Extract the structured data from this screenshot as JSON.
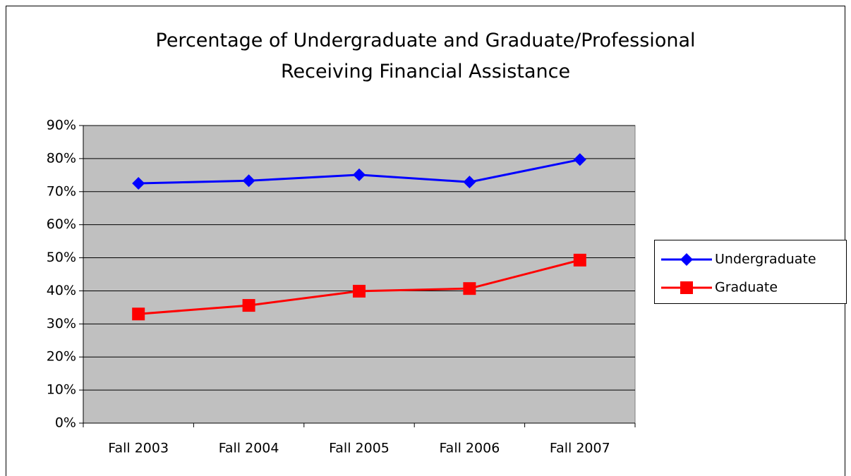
{
  "chart_data": {
    "type": "line",
    "title": "Percentage of Undergraduate and Graduate/Professional Receiving Financial Assistance",
    "categories": [
      "Fall 2003",
      "Fall 2004",
      "Fall 2005",
      "Fall 2006",
      "Fall 2007"
    ],
    "series": [
      {
        "name": "Undergraduate",
        "color": "#0000ff",
        "marker": "diamond",
        "values": [
          72.5,
          73.3,
          75.1,
          72.9,
          79.7
        ]
      },
      {
        "name": "Graduate",
        "color": "#ff0000",
        "marker": "square",
        "values": [
          33.0,
          35.6,
          39.9,
          40.7,
          49.3
        ]
      }
    ],
    "ylim": [
      0,
      90
    ],
    "yticks": [
      {
        "value": 0,
        "label": "0%"
      },
      {
        "value": 10,
        "label": "10%"
      },
      {
        "value": 20,
        "label": "20%"
      },
      {
        "value": 30,
        "label": "30%"
      },
      {
        "value": 40,
        "label": "40%"
      },
      {
        "value": 50,
        "label": "50%"
      },
      {
        "value": 60,
        "label": "60%"
      },
      {
        "value": 70,
        "label": "70%"
      },
      {
        "value": 80,
        "label": "80%"
      },
      {
        "value": 90,
        "label": "90%"
      }
    ],
    "grid": true,
    "legend": "right"
  }
}
